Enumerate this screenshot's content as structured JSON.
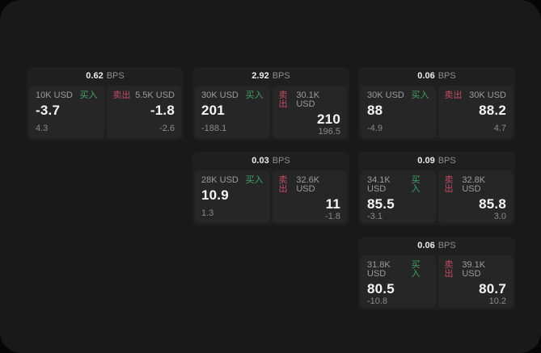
{
  "colors": {
    "background": "#060606",
    "panel": "#19191a",
    "card": "#1f1f20",
    "cell": "#262627",
    "buy_green": "#41a266",
    "sell_red": "#c04b63",
    "price_text": "#f5f5f5",
    "muted_text": "#9c9c9c"
  },
  "cards": [
    {
      "bps_value": "0.62",
      "bps_unit": "BPS",
      "buy": {
        "amount": "10K USD",
        "label": "买入",
        "price": "-3.7",
        "change": "4.3"
      },
      "sell": {
        "label": "卖出",
        "amount": "5.5K USD",
        "price": "-1.8",
        "change": "-2.6"
      }
    },
    {
      "bps_value": "2.92",
      "bps_unit": "BPS",
      "buy": {
        "amount": "30K USD",
        "label": "买入",
        "price": "201",
        "change": "-188.1"
      },
      "sell": {
        "label": "卖出",
        "amount": "30.1K USD",
        "price": "210",
        "change": "196.5"
      }
    },
    {
      "bps_value": "0.06",
      "bps_unit": "BPS",
      "buy": {
        "amount": "30K USD",
        "label": "买入",
        "price": "88",
        "change": "-4.9"
      },
      "sell": {
        "label": "卖出",
        "amount": "30K USD",
        "price": "88.2",
        "change": "4.7"
      }
    },
    {
      "bps_value": "0.03",
      "bps_unit": "BPS",
      "buy": {
        "amount": "28K USD",
        "label": "买入",
        "price": "10.9",
        "change": "1.3"
      },
      "sell": {
        "label": "卖出",
        "amount": "32.6K USD",
        "price": "11",
        "change": "-1.8"
      }
    },
    {
      "bps_value": "0.09",
      "bps_unit": "BPS",
      "buy": {
        "amount": "34.1K USD",
        "label": "买入",
        "price": "85.5",
        "change": "-3.1"
      },
      "sell": {
        "label": "卖出",
        "amount": "32.8K USD",
        "price": "85.8",
        "change": "3.0"
      }
    },
    {
      "bps_value": "0.06",
      "bps_unit": "BPS",
      "buy": {
        "amount": "31.8K USD",
        "label": "买入",
        "price": "80.5",
        "change": "-10.8"
      },
      "sell": {
        "label": "卖出",
        "amount": "39.1K USD",
        "price": "80.7",
        "change": "10.2"
      }
    }
  ]
}
